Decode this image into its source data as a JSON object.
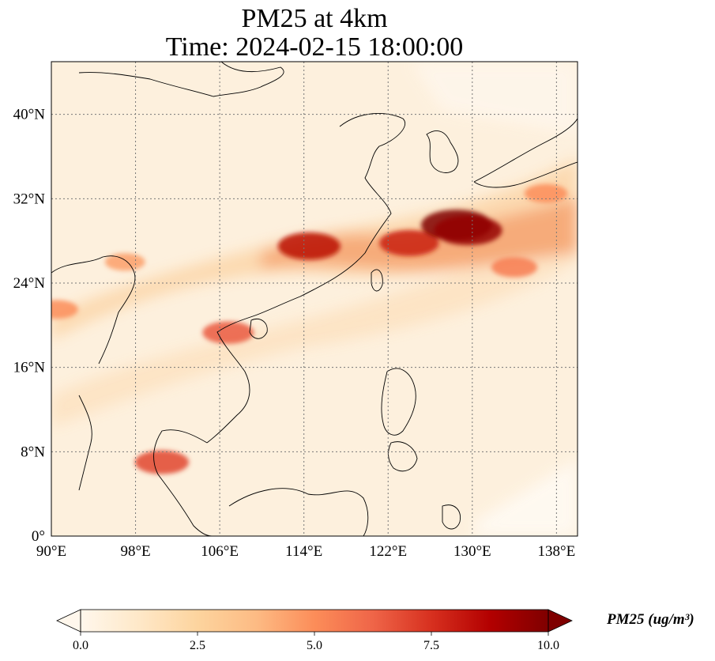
{
  "title": {
    "line1": "PM25 at 4km",
    "line2": "Time: 2024-02-15 18:00:00"
  },
  "map": {
    "extent": {
      "lon_min": 90,
      "lon_max": 140,
      "lat_min": 0,
      "lat_max": 45
    },
    "gridlines": "dotted",
    "x_ticks": [
      {
        "value": 90,
        "label": "90°E"
      },
      {
        "value": 98,
        "label": "98°E"
      },
      {
        "value": 106,
        "label": "106°E"
      },
      {
        "value": 114,
        "label": "114°E"
      },
      {
        "value": 122,
        "label": "122°E"
      },
      {
        "value": 130,
        "label": "130°E"
      },
      {
        "value": 138,
        "label": "138°E"
      }
    ],
    "y_ticks": [
      {
        "value": 0,
        "label": "0°"
      },
      {
        "value": 8,
        "label": "8°N"
      },
      {
        "value": 16,
        "label": "16°N"
      },
      {
        "value": 24,
        "label": "24°N"
      },
      {
        "value": 32,
        "label": "32°N"
      },
      {
        "value": 40,
        "label": "40°N"
      }
    ],
    "colormap": "OrRd",
    "colorbar": {
      "min": 0,
      "max": 10,
      "extend": "both",
      "ticks": [
        {
          "value": 0,
          "label": "0.0"
        },
        {
          "value": 2.5,
          "label": "2.5"
        },
        {
          "value": 5,
          "label": "5.0"
        },
        {
          "value": 7.5,
          "label": "7.5"
        },
        {
          "value": 10,
          "label": "10.0"
        }
      ],
      "label": "PM25 (ug/m³)"
    },
    "hotspots": [
      {
        "name": "yangtze-plume",
        "lon": 114.5,
        "lat": 27.5,
        "value": 8.5
      },
      {
        "name": "east-china-sea-plume",
        "lon": 124,
        "lat": 27.8,
        "value": 8.0
      },
      {
        "name": "kyushu-hotspot",
        "lon": 128.5,
        "lat": 29.5,
        "value": 10
      },
      {
        "name": "ryukyu-hotspot",
        "lon": 129.6,
        "lat": 29.0,
        "value": 9.5
      },
      {
        "name": "gulf-tonkin-coast",
        "lon": 106.8,
        "lat": 19.3,
        "value": 6.5
      },
      {
        "name": "myanmar-haze",
        "lon": 97.0,
        "lat": 26.0,
        "value": 4.5
      },
      {
        "name": "bangladesh-haze",
        "lon": 90.5,
        "lat": 21.5,
        "value": 5.0
      },
      {
        "name": "malay-peninsula-spot",
        "lon": 100.5,
        "lat": 7.0,
        "value": 7.0
      },
      {
        "name": "pacific-band",
        "lon": 134.0,
        "lat": 25.5,
        "value": 5.5
      },
      {
        "name": "north-pacific-band",
        "lon": 137.0,
        "lat": 32.5,
        "value": 5.0
      }
    ]
  }
}
